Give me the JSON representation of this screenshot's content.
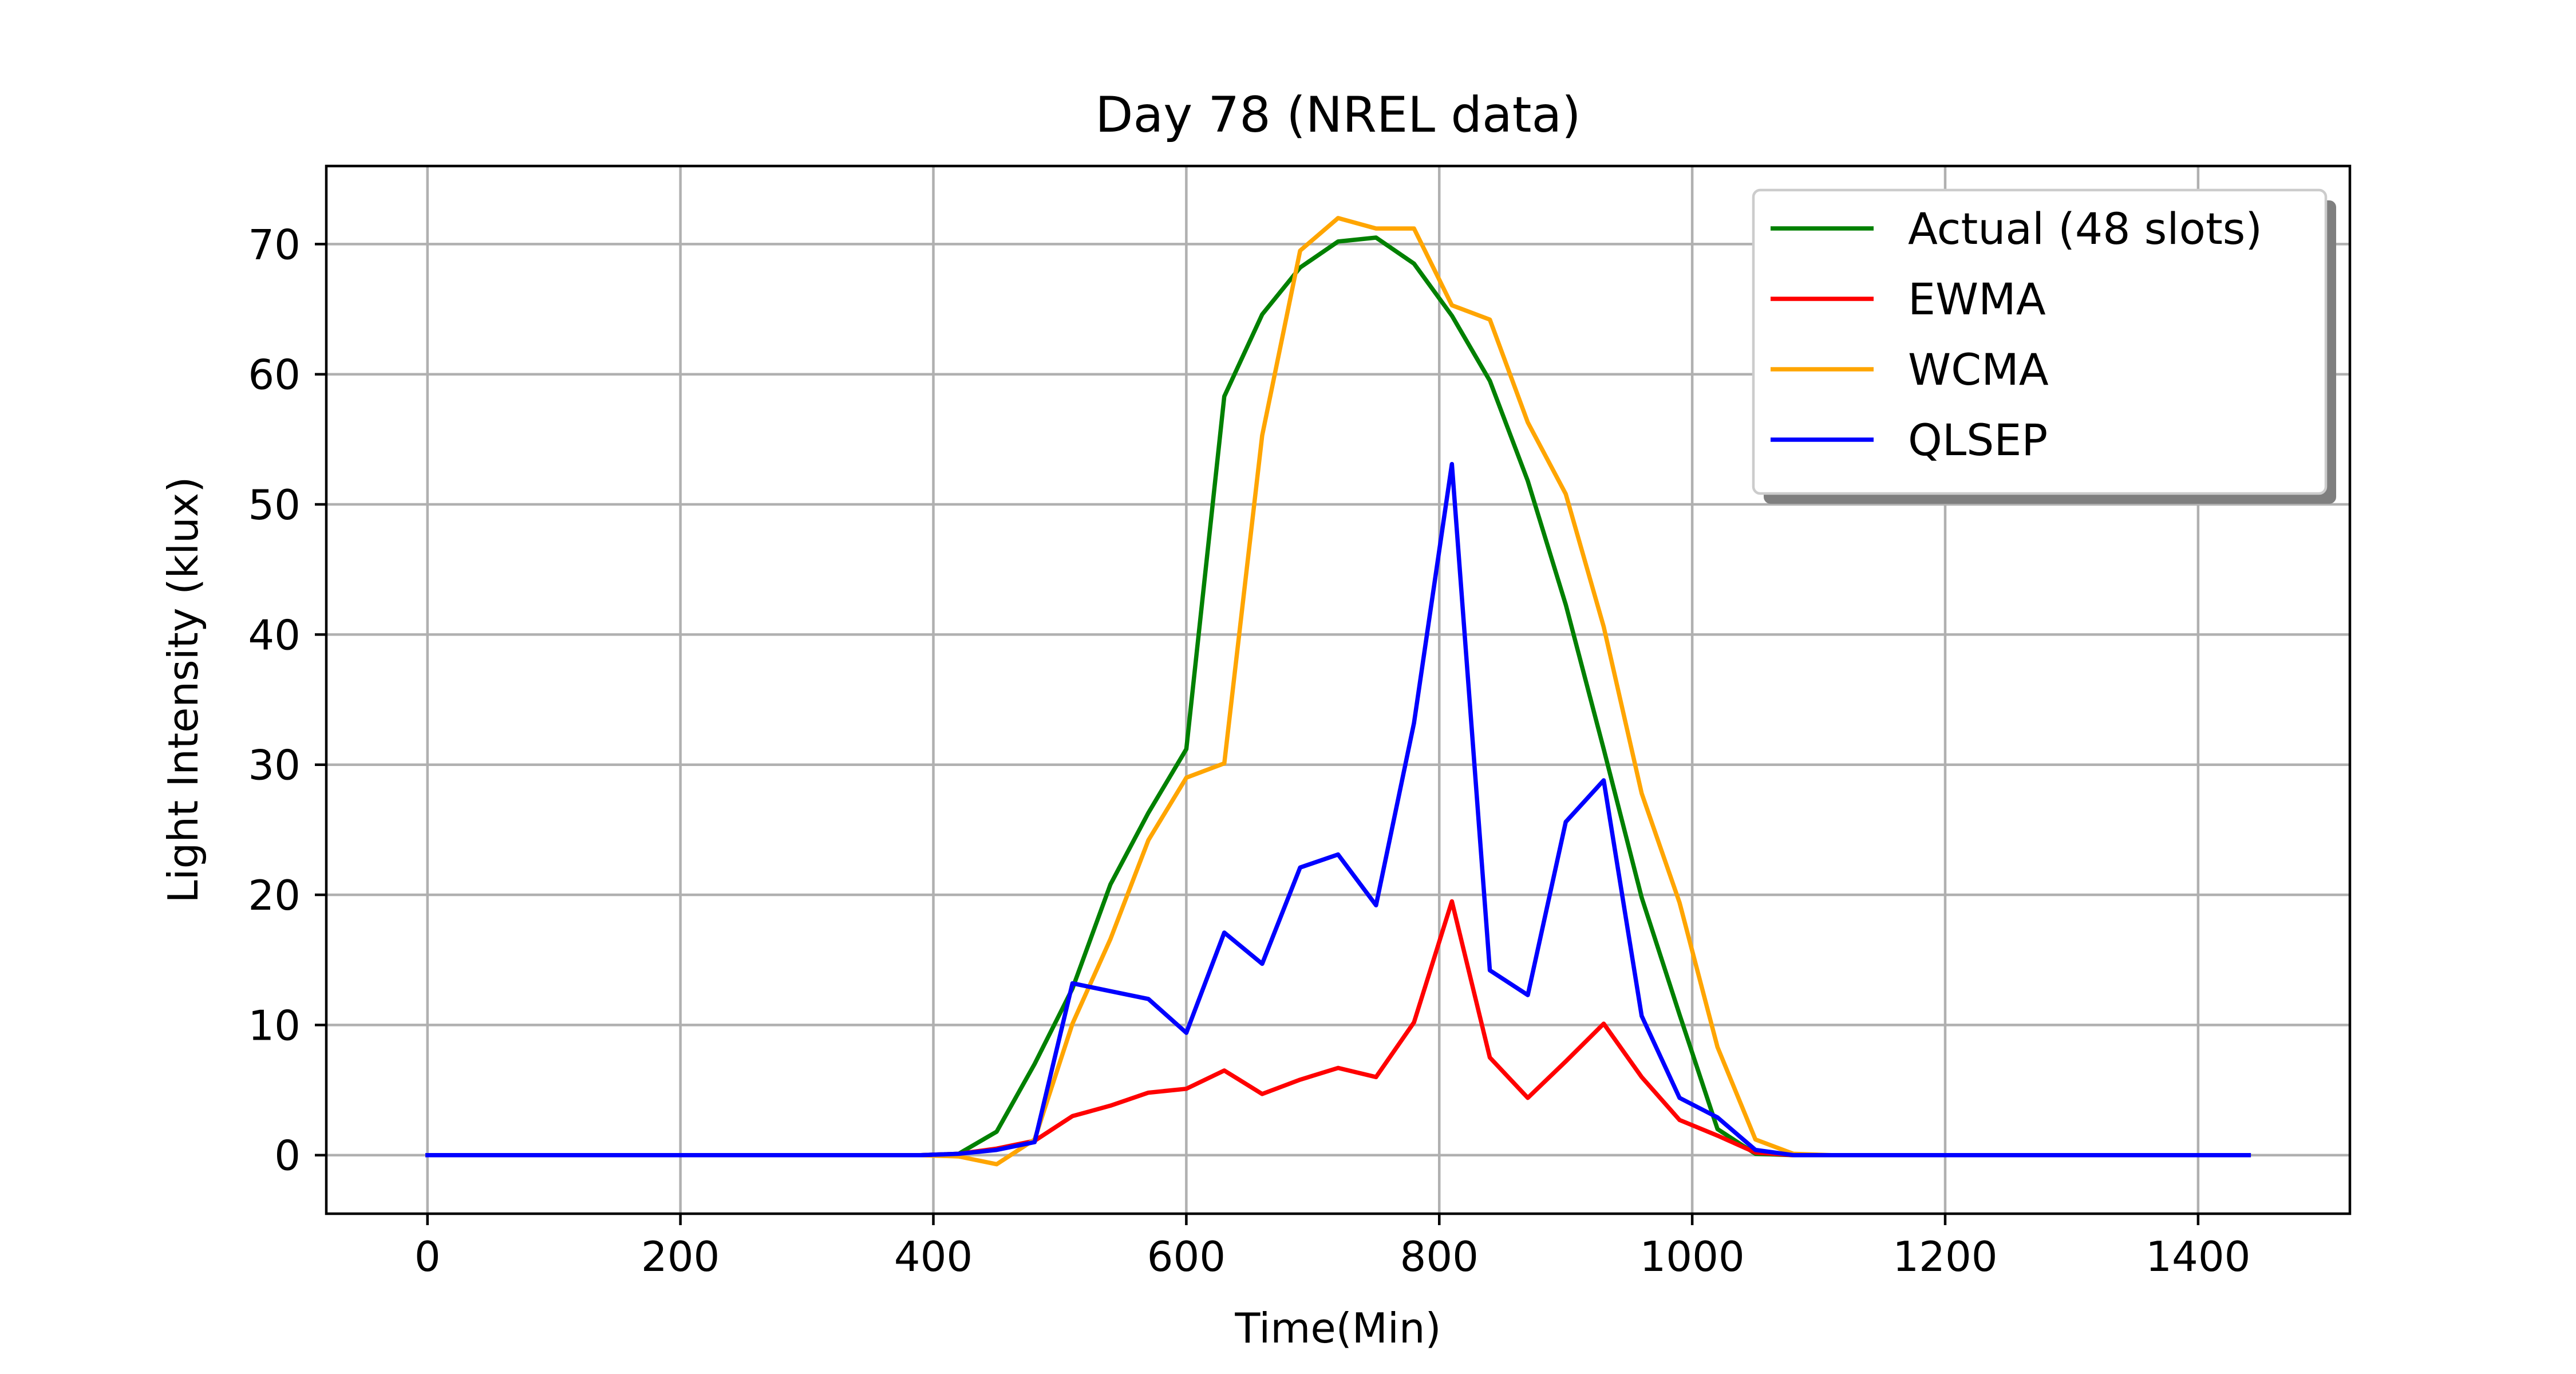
{
  "chart_data": {
    "type": "line",
    "title": "Day 78 (NREL data)",
    "xlabel": "Time(Min)",
    "ylabel": "Light Intensity (klux)",
    "xlim": [
      -80,
      1520
    ],
    "ylim": [
      -4.5,
      76
    ],
    "xticks": [
      0,
      200,
      400,
      600,
      800,
      1000,
      1200,
      1400
    ],
    "yticks": [
      0,
      10,
      20,
      30,
      40,
      50,
      60,
      70
    ],
    "grid": true,
    "legend_position": "top-right",
    "x": [
      0,
      30,
      60,
      90,
      120,
      150,
      180,
      210,
      240,
      270,
      300,
      330,
      360,
      390,
      420,
      450,
      480,
      510,
      540,
      570,
      600,
      630,
      660,
      690,
      720,
      750,
      780,
      810,
      840,
      870,
      900,
      930,
      960,
      990,
      1020,
      1050,
      1080,
      1110,
      1140,
      1170,
      1200,
      1230,
      1260,
      1290,
      1320,
      1350,
      1380,
      1410,
      1440
    ],
    "series": [
      {
        "name": "Actual (48 slots)",
        "color": "#008000",
        "values": [
          0,
          0,
          0,
          0,
          0,
          0,
          0,
          0,
          0,
          0,
          0,
          0,
          0,
          0,
          0.1,
          1.8,
          7.0,
          12.8,
          20.8,
          26.3,
          31.2,
          58.3,
          64.6,
          68.2,
          70.2,
          70.5,
          68.5,
          64.5,
          59.5,
          51.8,
          42.3,
          31.2,
          19.8,
          10.8,
          2.0,
          0.1,
          0,
          0,
          0,
          0,
          0,
          0,
          0,
          0,
          0,
          0,
          0,
          0,
          0
        ]
      },
      {
        "name": "EWMA",
        "color": "#ff0000",
        "values": [
          0,
          0,
          0,
          0,
          0,
          0,
          0,
          0,
          0,
          0,
          0,
          0,
          0,
          0,
          0.1,
          0.5,
          1.1,
          3.0,
          3.8,
          4.8,
          5.1,
          6.5,
          4.7,
          5.8,
          6.7,
          6.0,
          10.2,
          19.5,
          7.5,
          4.4,
          7.2,
          10.1,
          6.0,
          2.7,
          1.5,
          0.2,
          0,
          0,
          0,
          0,
          0,
          0,
          0,
          0,
          0,
          0,
          0,
          0,
          0
        ]
      },
      {
        "name": "WCMA",
        "color": "#ffa500",
        "values": [
          0,
          0,
          0,
          0,
          0,
          0,
          0,
          0,
          0,
          0,
          0,
          0,
          0,
          0,
          -0.1,
          -0.7,
          1.2,
          10.1,
          16.6,
          24.2,
          29.0,
          30.1,
          55.3,
          69.5,
          72.0,
          71.2,
          71.2,
          65.3,
          64.2,
          56.3,
          50.8,
          40.6,
          27.8,
          19.4,
          8.3,
          1.2,
          0.1,
          0,
          0,
          0,
          0,
          0,
          0,
          0,
          0,
          0,
          0,
          0,
          0
        ]
      },
      {
        "name": "QLSEP",
        "color": "#0000ff",
        "values": [
          0,
          0,
          0,
          0,
          0,
          0,
          0,
          0,
          0,
          0,
          0,
          0,
          0,
          0,
          0.1,
          0.4,
          1.0,
          13.2,
          12.6,
          12.0,
          9.4,
          17.1,
          14.7,
          22.1,
          23.1,
          19.2,
          33.2,
          53.1,
          14.2,
          12.3,
          25.6,
          28.8,
          10.7,
          4.4,
          2.9,
          0.4,
          0,
          0,
          0,
          0,
          0,
          0,
          0,
          0,
          0,
          0,
          0,
          0,
          0
        ]
      }
    ]
  }
}
